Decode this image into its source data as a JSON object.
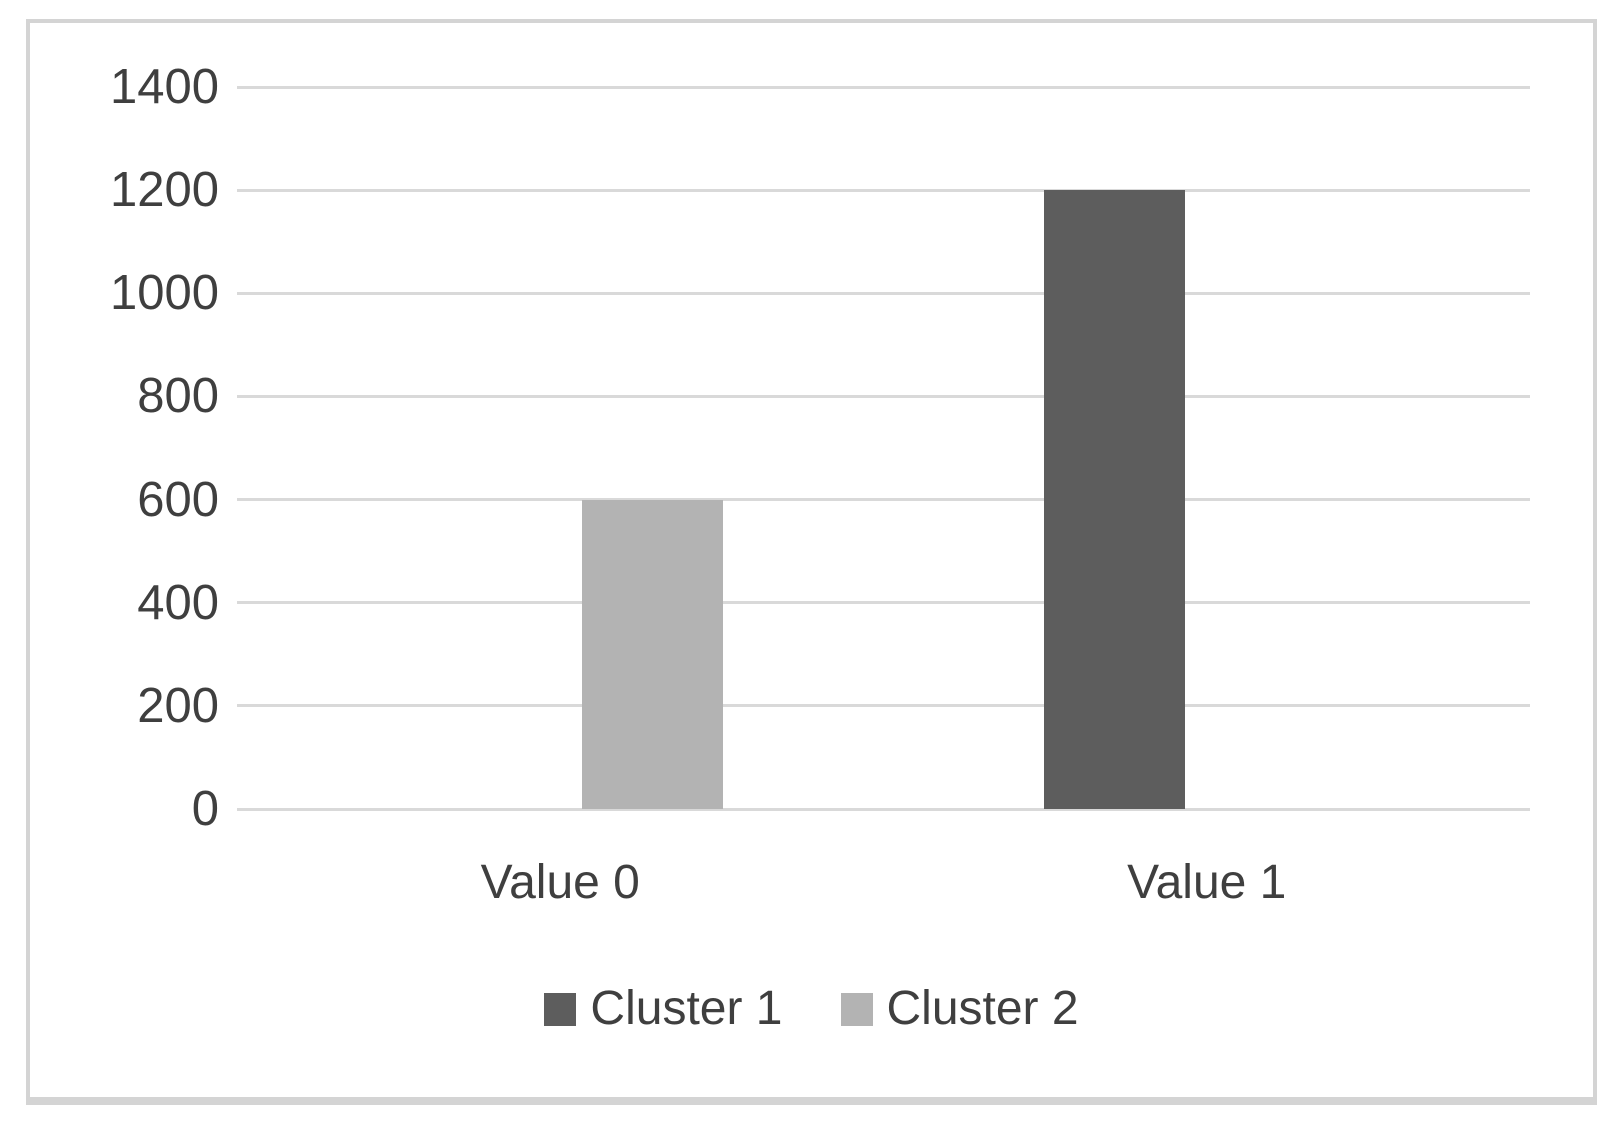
{
  "chart_data": {
    "type": "bar",
    "title": "",
    "xlabel": "",
    "ylabel": "",
    "categories": [
      "Value 0",
      "Value 1"
    ],
    "series": [
      {
        "name": "Cluster 1",
        "color": "#5d5d5d",
        "values": [
          0,
          1200
        ]
      },
      {
        "name": "Cluster 2",
        "color": "#b3b3b3",
        "values": [
          600,
          0
        ]
      }
    ],
    "ylim": [
      0,
      1400
    ],
    "yticks": [
      0,
      200,
      400,
      600,
      800,
      1000,
      1200,
      1400
    ],
    "grid": true,
    "legend_position": "bottom"
  },
  "colors": {
    "gridline": "#d9d9d9",
    "axis_text": "#3f3f3f",
    "frame_border": "#d4d4d4",
    "background": "#ffffff"
  }
}
